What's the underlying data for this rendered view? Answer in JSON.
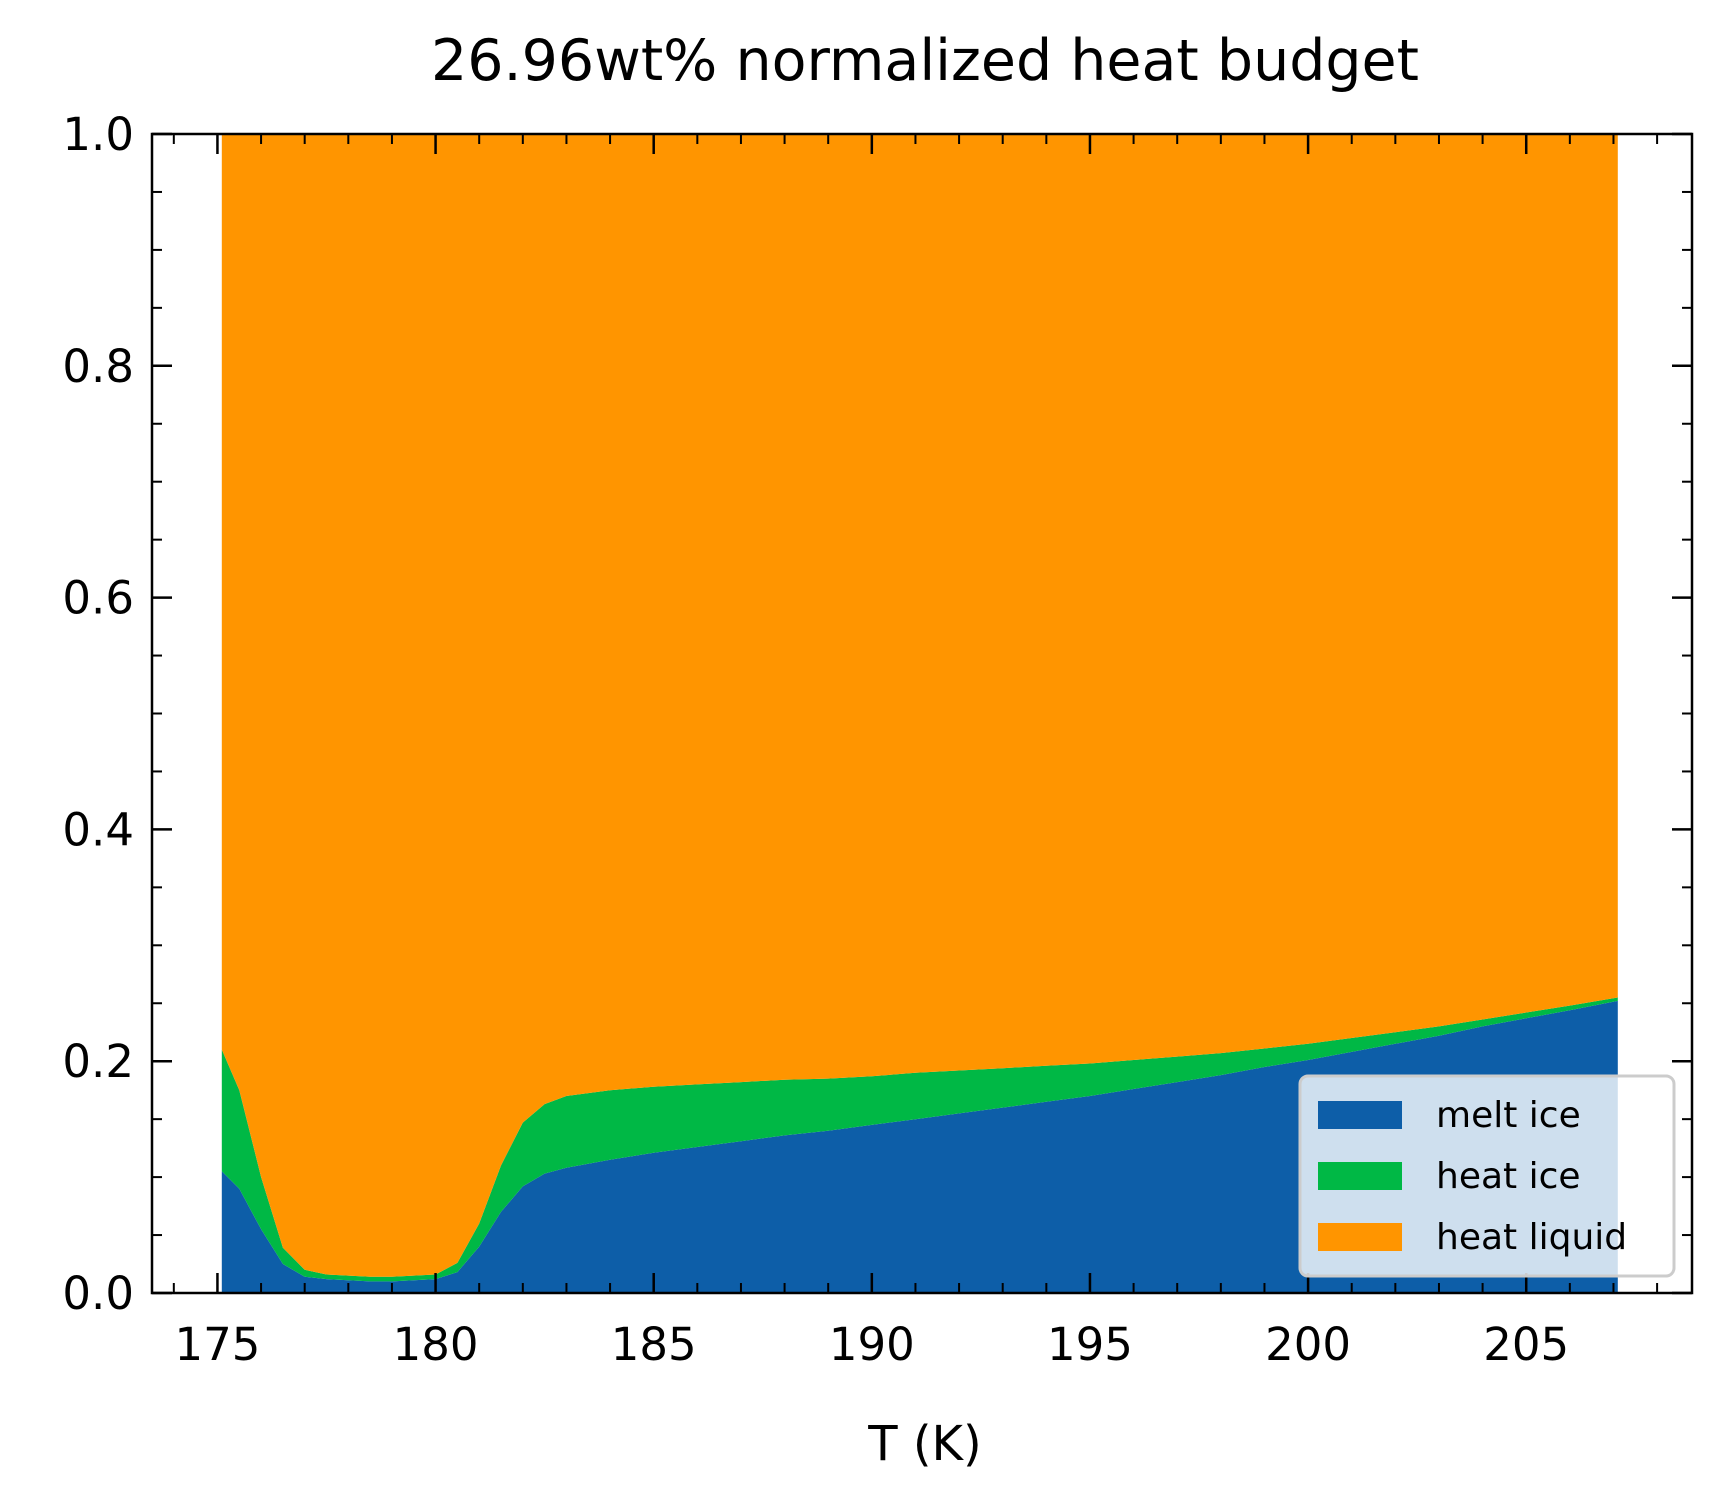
{
  "chart_data": {
    "type": "area",
    "stacked": true,
    "title": "26.96wt% normalized heat budget",
    "xlabel": "T (K)",
    "ylabel": "",
    "xlim": [
      173.5,
      208.8
    ],
    "ylim": [
      0.0,
      1.0
    ],
    "xticks": [
      175,
      180,
      185,
      190,
      195,
      200,
      205
    ],
    "xtick_labels": [
      "175",
      "180",
      "185",
      "190",
      "195",
      "200",
      "205"
    ],
    "yticks": [
      0.0,
      0.2,
      0.4,
      0.6,
      0.8,
      1.0
    ],
    "ytick_labels": [
      "0.0",
      "0.2",
      "0.4",
      "0.6",
      "0.8",
      "1.0"
    ],
    "grid": false,
    "legend_position": "lower-right",
    "x": [
      175.1,
      175.5,
      176.0,
      176.5,
      177.0,
      177.5,
      178.0,
      178.5,
      179.0,
      179.5,
      180.0,
      180.5,
      181.0,
      181.5,
      182.0,
      182.5,
      183.0,
      184.0,
      185.0,
      186.0,
      187.0,
      188.0,
      189.0,
      190.0,
      191.0,
      192.0,
      193.0,
      194.0,
      195.0,
      196.0,
      197.0,
      198.0,
      199.0,
      200.0,
      201.0,
      202.0,
      203.0,
      204.0,
      205.0,
      206.0,
      207.1
    ],
    "series": [
      {
        "name": "melt ice",
        "color": "#0d5ea8",
        "values": [
          0.105,
          0.09,
          0.055,
          0.025,
          0.014,
          0.012,
          0.011,
          0.01,
          0.01,
          0.011,
          0.012,
          0.018,
          0.04,
          0.07,
          0.092,
          0.103,
          0.108,
          0.115,
          0.121,
          0.126,
          0.131,
          0.136,
          0.14,
          0.145,
          0.15,
          0.155,
          0.16,
          0.165,
          0.17,
          0.176,
          0.182,
          0.188,
          0.195,
          0.201,
          0.208,
          0.215,
          0.222,
          0.23,
          0.237,
          0.244,
          0.252
        ]
      },
      {
        "name": "heat ice",
        "color": "#00b845",
        "values": [
          0.105,
          0.085,
          0.045,
          0.014,
          0.006,
          0.004,
          0.004,
          0.004,
          0.004,
          0.004,
          0.004,
          0.008,
          0.02,
          0.04,
          0.055,
          0.06,
          0.062,
          0.06,
          0.057,
          0.054,
          0.051,
          0.048,
          0.045,
          0.042,
          0.04,
          0.037,
          0.034,
          0.031,
          0.028,
          0.025,
          0.022,
          0.019,
          0.016,
          0.014,
          0.012,
          0.01,
          0.008,
          0.006,
          0.005,
          0.004,
          0.003
        ]
      },
      {
        "name": "heat liquid",
        "color": "#ff9500",
        "values": [
          0.79,
          0.825,
          0.9,
          0.961,
          0.98,
          0.984,
          0.985,
          0.986,
          0.986,
          0.985,
          0.984,
          0.974,
          0.94,
          0.89,
          0.853,
          0.837,
          0.83,
          0.825,
          0.822,
          0.82,
          0.818,
          0.816,
          0.815,
          0.813,
          0.81,
          0.808,
          0.806,
          0.804,
          0.802,
          0.799,
          0.796,
          0.793,
          0.789,
          0.785,
          0.78,
          0.775,
          0.77,
          0.764,
          0.758,
          0.752,
          0.745
        ]
      }
    ]
  }
}
